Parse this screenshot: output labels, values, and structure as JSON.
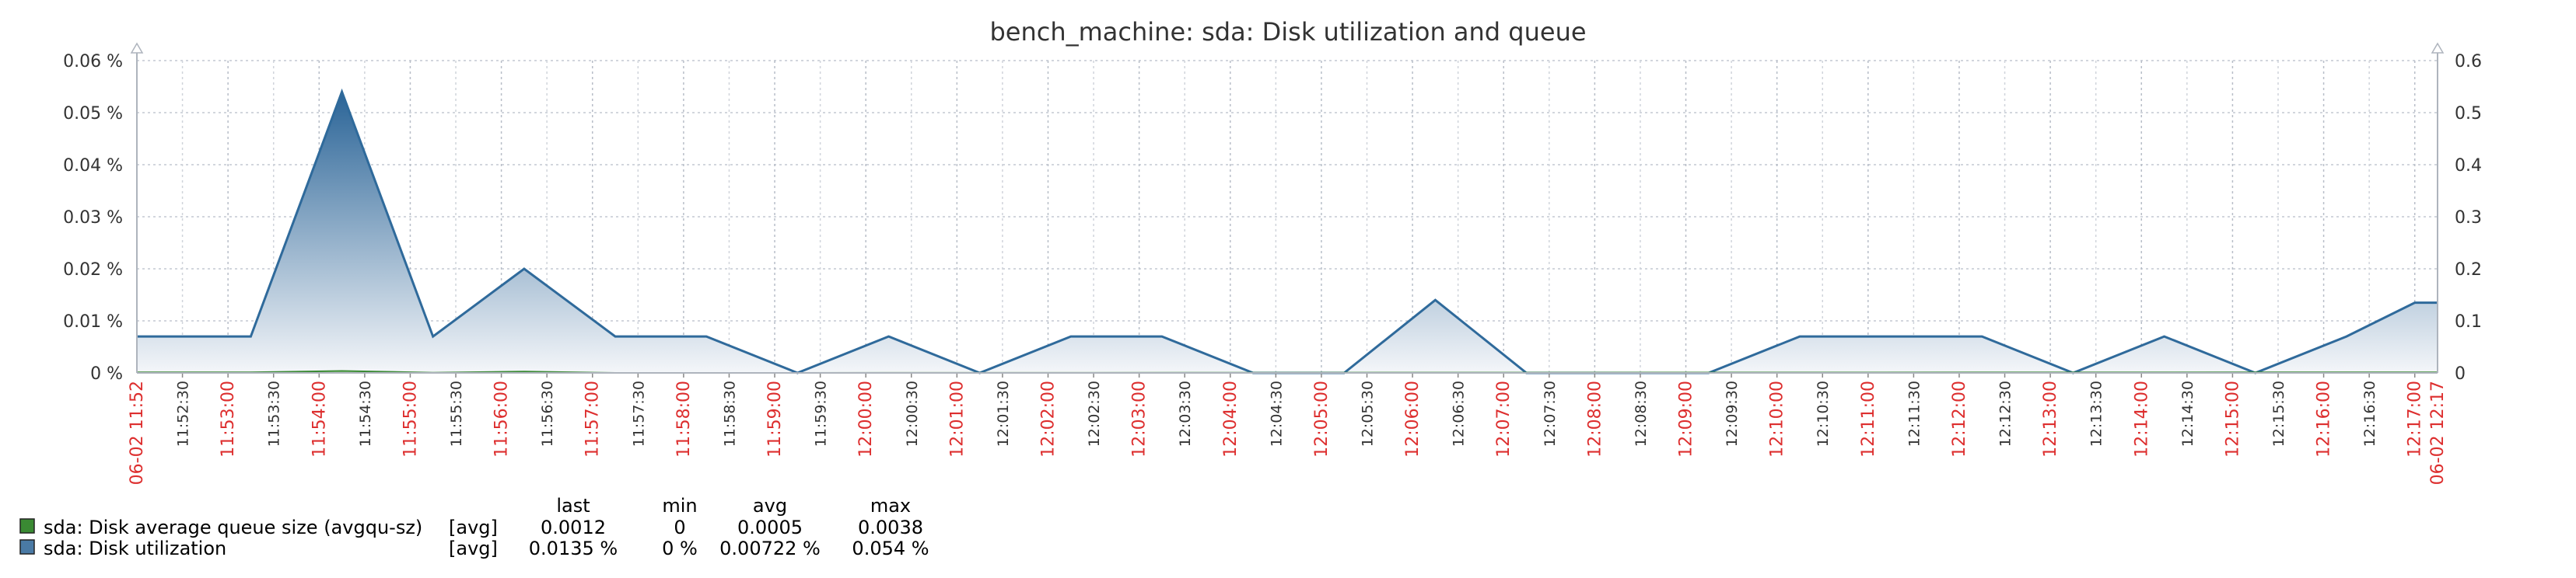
{
  "chart_data": {
    "type": "area",
    "title": "bench_machine: sda: Disk utilization and queue",
    "y_left": {
      "min": 0,
      "max": 0.06,
      "ticks": [
        {
          "v": 0,
          "label": "0 %"
        },
        {
          "v": 0.01,
          "label": "0.01 %"
        },
        {
          "v": 0.02,
          "label": "0.02 %"
        },
        {
          "v": 0.03,
          "label": "0.03 %"
        },
        {
          "v": 0.04,
          "label": "0.04 %"
        },
        {
          "v": 0.05,
          "label": "0.05 %"
        },
        {
          "v": 0.06,
          "label": "0.06 %"
        }
      ]
    },
    "y_right": {
      "min": 0,
      "max": 0.6,
      "ticks": [
        {
          "v": 0,
          "label": "0"
        },
        {
          "v": 0.1,
          "label": "0.1"
        },
        {
          "v": 0.2,
          "label": "0.2"
        },
        {
          "v": 0.3,
          "label": "0.3"
        },
        {
          "v": 0.4,
          "label": "0.4"
        },
        {
          "v": 0.5,
          "label": "0.5"
        },
        {
          "v": 0.6,
          "label": "0.6"
        }
      ]
    },
    "x_range": {
      "start": "11:52:00",
      "end": "12:17:15"
    },
    "x_start_label": "06-02 11:52",
    "x_end_label": "06-02 12:17",
    "x_ticks": [
      {
        "t": "11:52:30",
        "label": "11:52:30",
        "major": false
      },
      {
        "t": "11:53:00",
        "label": "11:53:00",
        "major": true
      },
      {
        "t": "11:53:30",
        "label": "11:53:30",
        "major": false
      },
      {
        "t": "11:54:00",
        "label": "11:54:00",
        "major": true
      },
      {
        "t": "11:54:30",
        "label": "11:54:30",
        "major": false
      },
      {
        "t": "11:55:00",
        "label": "11:55:00",
        "major": true
      },
      {
        "t": "11:55:30",
        "label": "11:55:30",
        "major": false
      },
      {
        "t": "11:56:00",
        "label": "11:56:00",
        "major": true
      },
      {
        "t": "11:56:30",
        "label": "11:56:30",
        "major": false
      },
      {
        "t": "11:57:00",
        "label": "11:57:00",
        "major": true
      },
      {
        "t": "11:57:30",
        "label": "11:57:30",
        "major": false
      },
      {
        "t": "11:58:00",
        "label": "11:58:00",
        "major": true
      },
      {
        "t": "11:58:30",
        "label": "11:58:30",
        "major": false
      },
      {
        "t": "11:59:00",
        "label": "11:59:00",
        "major": true
      },
      {
        "t": "11:59:30",
        "label": "11:59:30",
        "major": false
      },
      {
        "t": "12:00:00",
        "label": "12:00:00",
        "major": true
      },
      {
        "t": "12:00:30",
        "label": "12:00:30",
        "major": false
      },
      {
        "t": "12:01:00",
        "label": "12:01:00",
        "major": true
      },
      {
        "t": "12:01:30",
        "label": "12:01:30",
        "major": false
      },
      {
        "t": "12:02:00",
        "label": "12:02:00",
        "major": true
      },
      {
        "t": "12:02:30",
        "label": "12:02:30",
        "major": false
      },
      {
        "t": "12:03:00",
        "label": "12:03:00",
        "major": true
      },
      {
        "t": "12:03:30",
        "label": "12:03:30",
        "major": false
      },
      {
        "t": "12:04:00",
        "label": "12:04:00",
        "major": true
      },
      {
        "t": "12:04:30",
        "label": "12:04:30",
        "major": false
      },
      {
        "t": "12:05:00",
        "label": "12:05:00",
        "major": true
      },
      {
        "t": "12:05:30",
        "label": "12:05:30",
        "major": false
      },
      {
        "t": "12:06:00",
        "label": "12:06:00",
        "major": true
      },
      {
        "t": "12:06:30",
        "label": "12:06:30",
        "major": false
      },
      {
        "t": "12:07:00",
        "label": "12:07:00",
        "major": true
      },
      {
        "t": "12:07:30",
        "label": "12:07:30",
        "major": false
      },
      {
        "t": "12:08:00",
        "label": "12:08:00",
        "major": true
      },
      {
        "t": "12:08:30",
        "label": "12:08:30",
        "major": false
      },
      {
        "t": "12:09:00",
        "label": "12:09:00",
        "major": true
      },
      {
        "t": "12:09:30",
        "label": "12:09:30",
        "major": false
      },
      {
        "t": "12:10:00",
        "label": "12:10:00",
        "major": true
      },
      {
        "t": "12:10:30",
        "label": "12:10:30",
        "major": false
      },
      {
        "t": "12:11:00",
        "label": "12:11:00",
        "major": true
      },
      {
        "t": "12:11:30",
        "label": "12:11:30",
        "major": false
      },
      {
        "t": "12:12:00",
        "label": "12:12:00",
        "major": true
      },
      {
        "t": "12:12:30",
        "label": "12:12:30",
        "major": false
      },
      {
        "t": "12:13:00",
        "label": "12:13:00",
        "major": true
      },
      {
        "t": "12:13:30",
        "label": "12:13:30",
        "major": false
      },
      {
        "t": "12:14:00",
        "label": "12:14:00",
        "major": true
      },
      {
        "t": "12:14:30",
        "label": "12:14:30",
        "major": false
      },
      {
        "t": "12:15:00",
        "label": "12:15:00",
        "major": true
      },
      {
        "t": "12:15:30",
        "label": "12:15:30",
        "major": false
      },
      {
        "t": "12:16:00",
        "label": "12:16:00",
        "major": true
      },
      {
        "t": "12:16:30",
        "label": "12:16:30",
        "major": false
      },
      {
        "t": "12:17:00",
        "label": "12:17:00",
        "major": true
      }
    ],
    "grid": true,
    "series": [
      {
        "name": "sda: Disk utilization",
        "axis": "left",
        "color": "#2f6a9b",
        "points": [
          [
            "11:52:00",
            0.007
          ],
          [
            "11:53:15",
            0.007
          ],
          [
            "11:54:15",
            0.054
          ],
          [
            "11:55:15",
            0.007
          ],
          [
            "11:56:15",
            0.02
          ],
          [
            "11:57:15",
            0.007
          ],
          [
            "11:58:15",
            0.007
          ],
          [
            "11:59:15",
            0.0
          ],
          [
            "12:00:15",
            0.007
          ],
          [
            "12:01:15",
            0.0
          ],
          [
            "12:02:15",
            0.007
          ],
          [
            "12:03:15",
            0.007
          ],
          [
            "12:04:15",
            0.0
          ],
          [
            "12:05:15",
            0.0
          ],
          [
            "12:06:15",
            0.014
          ],
          [
            "12:07:15",
            0.0
          ],
          [
            "12:08:15",
            0.0
          ],
          [
            "12:09:15",
            0.0
          ],
          [
            "12:10:15",
            0.007
          ],
          [
            "12:11:15",
            0.007
          ],
          [
            "12:12:15",
            0.007
          ],
          [
            "12:13:15",
            0.0
          ],
          [
            "12:14:15",
            0.007
          ],
          [
            "12:15:15",
            0.0
          ],
          [
            "12:16:15",
            0.007
          ],
          [
            "12:17:00",
            0.0135
          ],
          [
            "12:17:15",
            0.0135
          ]
        ]
      },
      {
        "name": "sda: Disk average queue size (avgqu-sz)",
        "axis": "right",
        "color": "#3a8a33",
        "points": [
          [
            "11:52:00",
            0.0012
          ],
          [
            "11:53:15",
            0.0012
          ],
          [
            "11:54:15",
            0.0038
          ],
          [
            "11:55:15",
            0.0005
          ],
          [
            "11:56:15",
            0.0025
          ],
          [
            "11:57:15",
            0.0
          ],
          [
            "11:58:15",
            0.0
          ],
          [
            "12:17:15",
            0.0012
          ]
        ]
      }
    ],
    "legend": {
      "headers": [
        "last",
        "min",
        "avg",
        "max"
      ],
      "rows": [
        {
          "name": "sda: Disk average queue size (avgqu-sz)",
          "func": "[avg]",
          "color": "#3a8a33",
          "last": "0.0012",
          "min": "0",
          "avg": "0.0005",
          "max": "0.0038"
        },
        {
          "name": "sda: Disk utilization",
          "func": "[avg]",
          "color": "#4a7aa5",
          "last": "0.0135 %",
          "min": "0 %",
          "avg": "0.00722 %",
          "max": "0.054 %"
        }
      ]
    }
  }
}
